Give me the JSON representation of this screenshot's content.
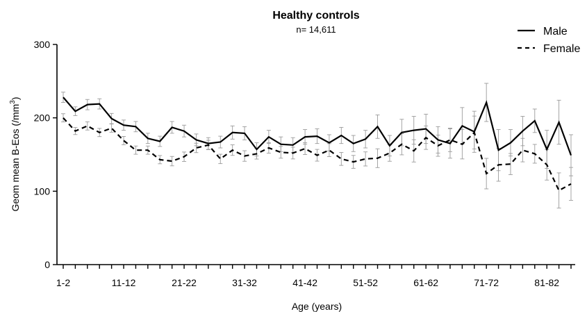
{
  "chart_data": {
    "type": "line",
    "title": "Healthy controls",
    "subtitle": "n= 14,611",
    "xlabel": "Age (years)",
    "ylabel": "Geom mean B-Eos (/mm",
    "ylabel_sup": "3",
    "ylabel_close": ")",
    "ylim": [
      0,
      300
    ],
    "yticks": [
      0,
      100,
      200,
      300
    ],
    "xtick_labels": [
      "1-2",
      "11-12",
      "21-22",
      "31-32",
      "41-42",
      "51-52",
      "61-62",
      "71-72",
      "81-82"
    ],
    "xtick_positions": [
      1,
      6,
      11,
      16,
      21,
      26,
      31,
      36,
      41
    ],
    "x_count": 43,
    "legend": {
      "position": "top-right"
    },
    "series": [
      {
        "name": "Male",
        "style": "solid",
        "values": [
          228,
          209,
          218,
          219,
          199,
          190,
          188,
          172,
          168,
          187,
          182,
          170,
          165,
          167,
          180,
          179,
          157,
          174,
          164,
          163,
          174,
          175,
          166,
          176,
          165,
          171,
          188,
          162,
          180,
          183,
          185,
          170,
          165,
          189,
          181,
          221,
          156,
          166,
          182,
          196,
          157,
          194,
          149
        ],
        "error": [
          7,
          6,
          7,
          7,
          7,
          7,
          7,
          7,
          7,
          8,
          8,
          8,
          8,
          8,
          9,
          9,
          9,
          9,
          10,
          10,
          10,
          10,
          11,
          11,
          11,
          12,
          16,
          14,
          18,
          19,
          20,
          18,
          20,
          25,
          28,
          26,
          28,
          18,
          20,
          16,
          26,
          30,
          28
        ]
      },
      {
        "name": "Female",
        "style": "dashed",
        "values": [
          200,
          182,
          189,
          180,
          186,
          169,
          156,
          156,
          143,
          141,
          147,
          159,
          163,
          144,
          156,
          148,
          151,
          159,
          153,
          152,
          158,
          149,
          156,
          144,
          140,
          144,
          145,
          152,
          164,
          155,
          173,
          162,
          170,
          164,
          180,
          124,
          136,
          137,
          156,
          151,
          136,
          101,
          110
        ]
      }
    ]
  }
}
